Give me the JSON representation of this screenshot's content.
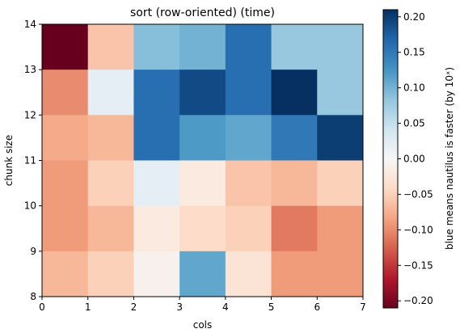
{
  "chart_data": {
    "type": "heatmap",
    "title": "sort (row-oriented) (time)",
    "xlabel": "cols",
    "ylabel": "chunk size",
    "xlim": [
      0,
      7
    ],
    "ylim": [
      8,
      14
    ],
    "xticks": [
      0,
      1,
      2,
      3,
      4,
      5,
      6,
      7
    ],
    "yticks": [
      8,
      9,
      10,
      11,
      12,
      13,
      14
    ],
    "colorbar": {
      "label": "blue means nautilus is faster (by 10ˣ)",
      "vmin": -0.21,
      "vmax": 0.21,
      "ticks": [
        -0.2,
        -0.15,
        -0.1,
        -0.05,
        0.0,
        0.05,
        0.1,
        0.15,
        0.2
      ],
      "tick_labels": [
        "−0.20",
        "−0.15",
        "−0.10",
        "−0.05",
        "0.00",
        "0.05",
        "0.10",
        "0.15",
        "0.20"
      ],
      "colormap": "RdBu"
    },
    "rows_y_from_top": [
      13,
      12,
      11,
      10,
      9,
      8
    ],
    "values": [
      [
        -0.21,
        -0.06,
        0.09,
        0.1,
        0.16,
        0.08,
        0.08
      ],
      [
        -0.1,
        0.02,
        0.16,
        0.19,
        0.16,
        0.21,
        0.08
      ],
      [
        -0.08,
        -0.07,
        0.16,
        0.12,
        0.11,
        0.15,
        0.2
      ],
      [
        -0.09,
        -0.05,
        0.02,
        -0.02,
        -0.06,
        -0.07,
        -0.05
      ],
      [
        -0.09,
        -0.07,
        -0.02,
        -0.04,
        -0.05,
        -0.11,
        -0.09
      ],
      [
        -0.07,
        -0.05,
        -0.01,
        0.11,
        -0.03,
        -0.09,
        -0.09
      ]
    ]
  }
}
